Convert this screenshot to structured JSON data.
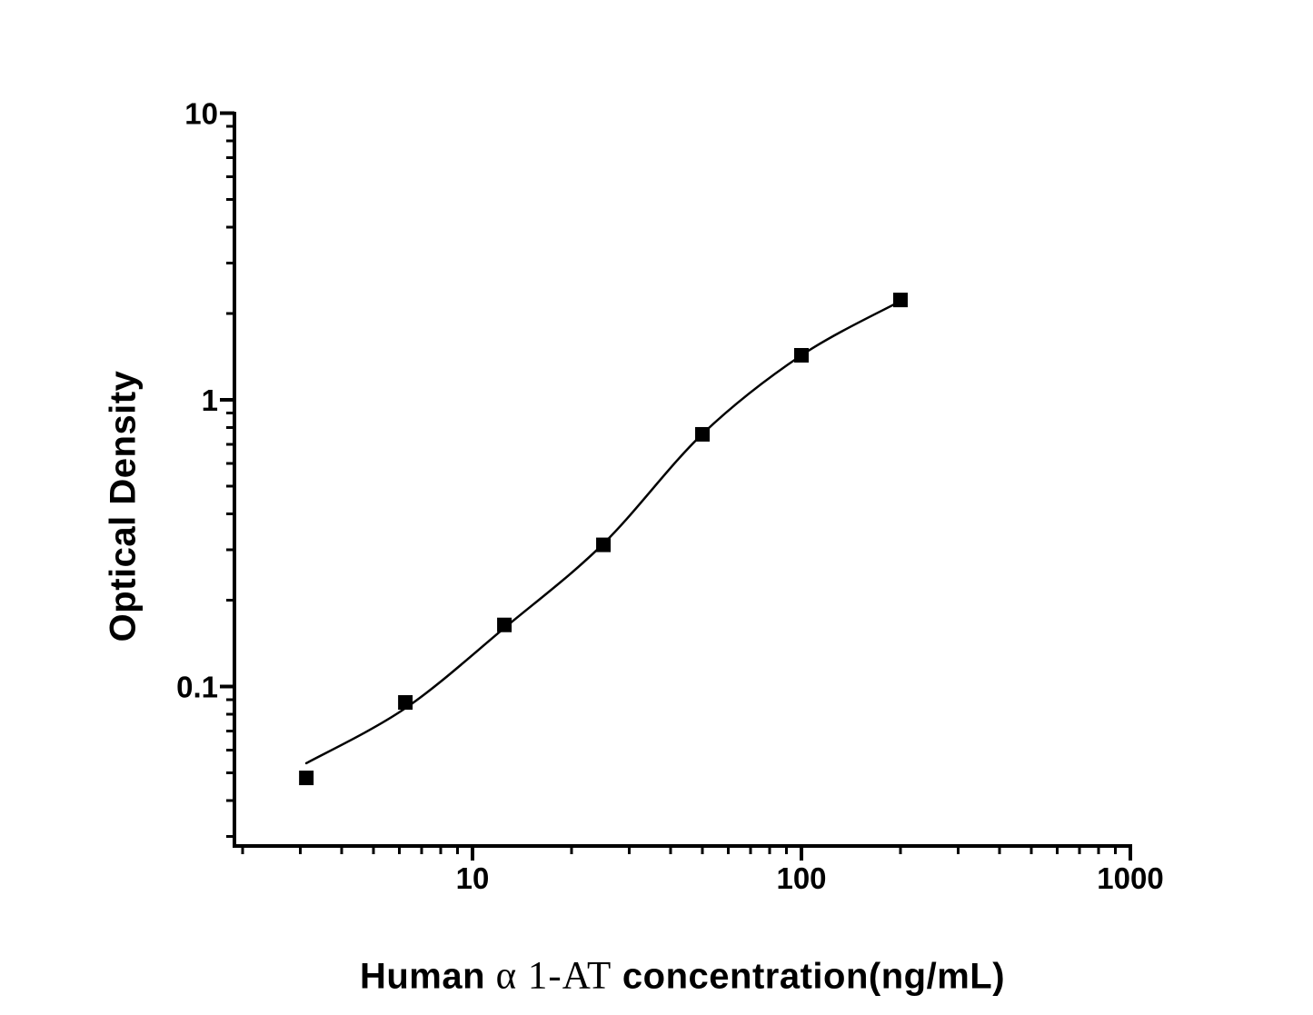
{
  "figure": {
    "background": "#ffffff",
    "ink_color": "#000000"
  },
  "chart_data": {
    "type": "scatter",
    "title": "",
    "xlabel_full": "Human α 1-AT concentration(ng/mL)",
    "xlabel_parts": {
      "prefix": "Human ",
      "analyte": "α 1-AT",
      "suffix": " concentration(ng/mL)"
    },
    "ylabel": "Optical Density",
    "x_scale": "log",
    "y_scale": "log",
    "x_range": [
      1.9,
      1000
    ],
    "y_range": [
      0.028,
      10
    ],
    "x_major_ticks": [
      {
        "value": 10,
        "label": "10"
      },
      {
        "value": 100,
        "label": "100"
      },
      {
        "value": 1000,
        "label": "1000"
      }
    ],
    "y_major_ticks": [
      {
        "value": 0.1,
        "label": "0.1"
      },
      {
        "value": 1,
        "label": "1"
      },
      {
        "value": 10,
        "label": "10"
      }
    ],
    "grid": false,
    "legend": "none",
    "series": [
      {
        "name": "standard-points",
        "marker": "filled-square",
        "color": "#000000",
        "points": [
          {
            "x": 3.125,
            "y": 0.048
          },
          {
            "x": 6.25,
            "y": 0.088
          },
          {
            "x": 12.5,
            "y": 0.164
          },
          {
            "x": 25,
            "y": 0.312
          },
          {
            "x": 50,
            "y": 0.758
          },
          {
            "x": 100,
            "y": 1.43
          },
          {
            "x": 200,
            "y": 2.23
          }
        ]
      },
      {
        "name": "fit-curve",
        "marker": "none",
        "color": "#000000",
        "points": [
          {
            "x": 3.125,
            "y": 0.054
          },
          {
            "x": 6.25,
            "y": 0.084
          },
          {
            "x": 12.5,
            "y": 0.16
          },
          {
            "x": 25,
            "y": 0.315
          },
          {
            "x": 50,
            "y": 0.76
          },
          {
            "x": 100,
            "y": 1.43
          },
          {
            "x": 200,
            "y": 2.21
          }
        ]
      }
    ]
  }
}
